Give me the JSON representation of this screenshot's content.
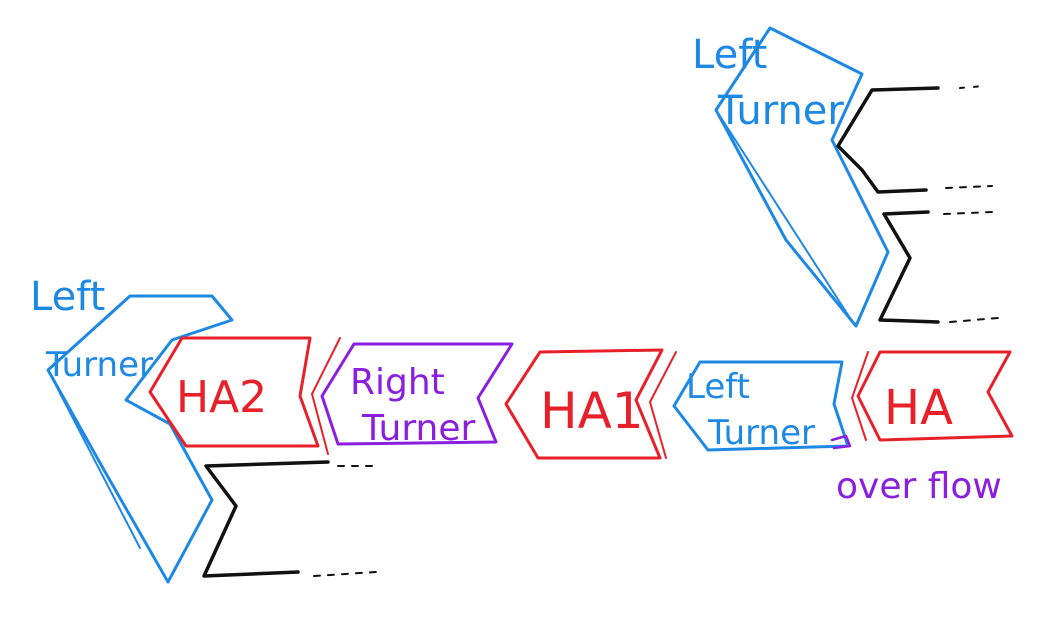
{
  "colors": {
    "adder": "#e8202a",
    "left_turner": "#1e88e5",
    "right_turner": "#8a1fe0",
    "wire": "#111111",
    "overflow": "#8a1fe0"
  },
  "labels": {
    "top_left_turner": [
      "Left",
      "Turner"
    ],
    "left_left_turner": [
      "Left",
      "Turner"
    ],
    "ha2": "HA2",
    "right_turner": [
      "Right",
      "Turner"
    ],
    "ha1": "HA1",
    "mid_left_turner": [
      "Left",
      "Turner"
    ],
    "ha": "HA",
    "overflow": "over flow"
  }
}
